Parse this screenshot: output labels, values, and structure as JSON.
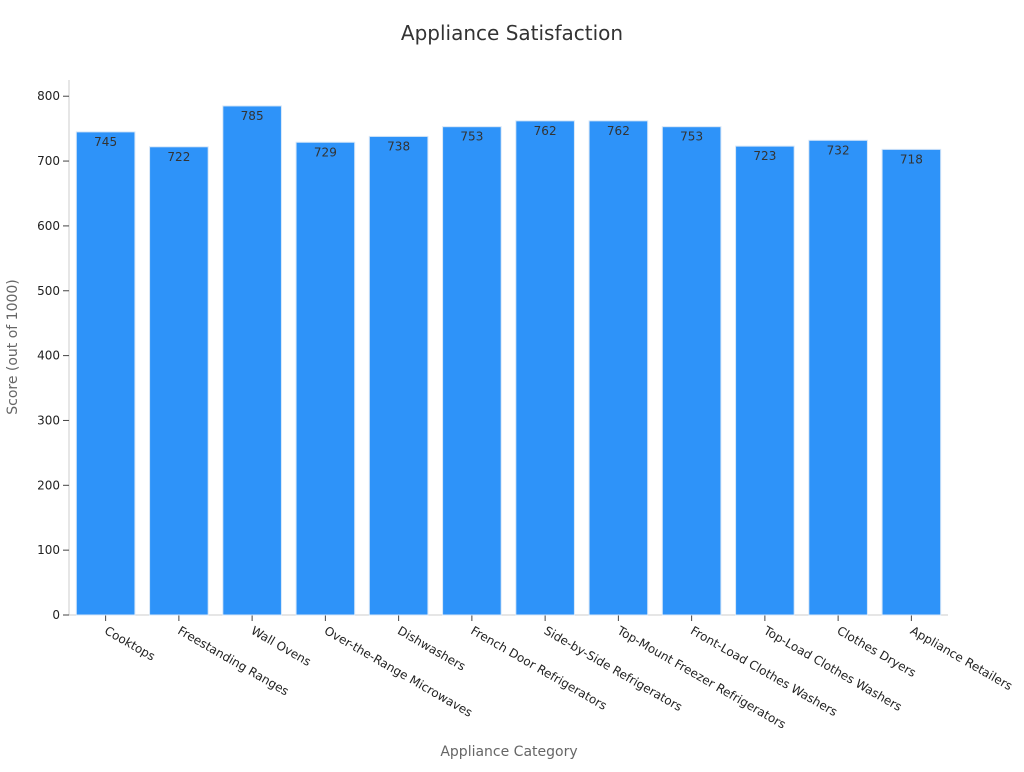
{
  "chart_data": {
    "type": "bar",
    "title": "Appliance Satisfaction",
    "xlabel": "Appliance Category",
    "ylabel": "Score (out of 1000)",
    "categories": [
      "Cooktops",
      "Freestanding Ranges",
      "Wall Ovens",
      "Over-the-Range Microwaves",
      "Dishwashers",
      "French Door Refrigerators",
      "Side-by-Side Refrigerators",
      "Top-Mount Freezer Refrigerators",
      "Front-Load Clothes Washers",
      "Top-Load Clothes Washers",
      "Clothes Dryers",
      "Appliance Retailers"
    ],
    "values": [
      745,
      722,
      785,
      729,
      738,
      753,
      762,
      762,
      753,
      723,
      732,
      718
    ],
    "ylim": [
      0,
      825
    ],
    "yticks": [
      0,
      100,
      200,
      300,
      400,
      500,
      600,
      700,
      800
    ],
    "grid": false,
    "legend": "none",
    "colors": {
      "bar": "#2e93f9",
      "bar_edge": "#d6e6f7",
      "axis": "#cccccc",
      "title": "#333333",
      "label": "#666666",
      "tick_text": "#222222",
      "data_label": "#333333"
    }
  }
}
